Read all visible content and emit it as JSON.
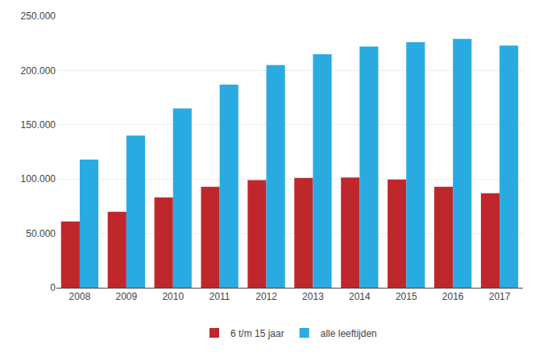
{
  "chart_data": {
    "type": "bar",
    "categories": [
      "2008",
      "2009",
      "2010",
      "2011",
      "2012",
      "2013",
      "2014",
      "2015",
      "2016",
      "2017"
    ],
    "series": [
      {
        "name": "6 t/m 15 jaar",
        "color": "#C0272D",
        "values": [
          61000,
          70000,
          83000,
          93000,
          99000,
          101000,
          101500,
          99500,
          93000,
          87000
        ]
      },
      {
        "name": "alle leeftijden",
        "color": "#29ABE2",
        "values": [
          118000,
          140000,
          165000,
          187000,
          205000,
          215000,
          222000,
          226000,
          229000,
          223000
        ]
      }
    ],
    "ylim": [
      0,
      250000
    ],
    "yticks": [
      0,
      {
        "value": 50000,
        "label": "50.000"
      },
      {
        "value": 100000,
        "label": "100.000"
      },
      {
        "value": 150000,
        "label": "150.000"
      },
      {
        "value": 200000,
        "label": "200.000"
      },
      {
        "value": 250000,
        "label": "250.000"
      }
    ],
    "grid": true,
    "legend": "bottom"
  }
}
